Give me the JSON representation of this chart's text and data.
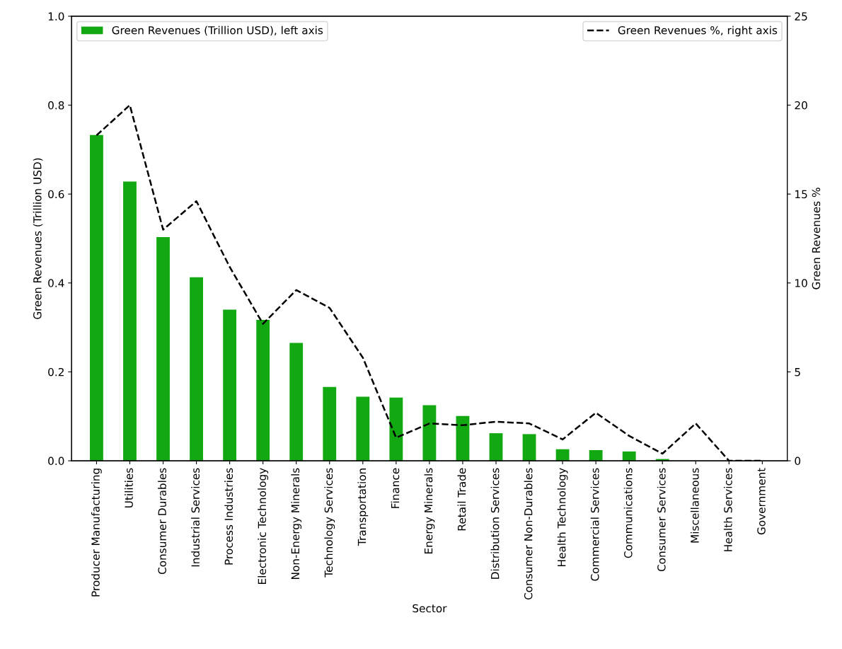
{
  "chart_data": {
    "type": "bar",
    "xlabel": "Sector",
    "ylabel": "Green Revenues (Trillion USD)",
    "y2label": "Green Revenues %",
    "categories": [
      "Producer Manufacturing",
      "Utilities",
      "Consumer Durables",
      "Industrial Services",
      "Process Industries",
      "Electronic Technology",
      "Non-Energy Minerals",
      "Technology Services",
      "Transportation",
      "Finance",
      "Energy Minerals",
      "Retail Trade",
      "Distribution Services",
      "Consumer Non-Durables",
      "Health Technology",
      "Commercial Services",
      "Communications",
      "Consumer Services",
      "Miscellaneous",
      "Health Services",
      "Government"
    ],
    "series": [
      {
        "name": "Green Revenues (Trillion USD), left axis",
        "color": "#11a811",
        "values": [
          0.733,
          0.628,
          0.503,
          0.413,
          0.34,
          0.317,
          0.265,
          0.166,
          0.144,
          0.142,
          0.125,
          0.101,
          0.062,
          0.06,
          0.026,
          0.024,
          0.021,
          0.004,
          0,
          0,
          0
        ]
      },
      {
        "name": "Green Revenues %, right axis",
        "type": "line",
        "axis": "y2",
        "color": "#000000",
        "line_style": "dashed",
        "values": [
          18.3,
          20.0,
          13.0,
          14.6,
          10.9,
          7.7,
          9.6,
          8.6,
          5.8,
          1.3,
          2.1,
          2.0,
          2.2,
          2.1,
          1.2,
          2.7,
          1.4,
          0.4,
          2.1,
          0.0,
          0.0
        ]
      }
    ],
    "ylim": [
      0,
      1
    ],
    "yticks": [
      {
        "value": 0,
        "label": "0.0"
      },
      0.2,
      0.4,
      0.6,
      0.8,
      {
        "value": 1,
        "label": "1.0"
      }
    ],
    "y2lim": [
      0,
      25
    ],
    "y2ticks": [
      0,
      5,
      10,
      15,
      20,
      25
    ],
    "grid": false,
    "legend": "top"
  }
}
